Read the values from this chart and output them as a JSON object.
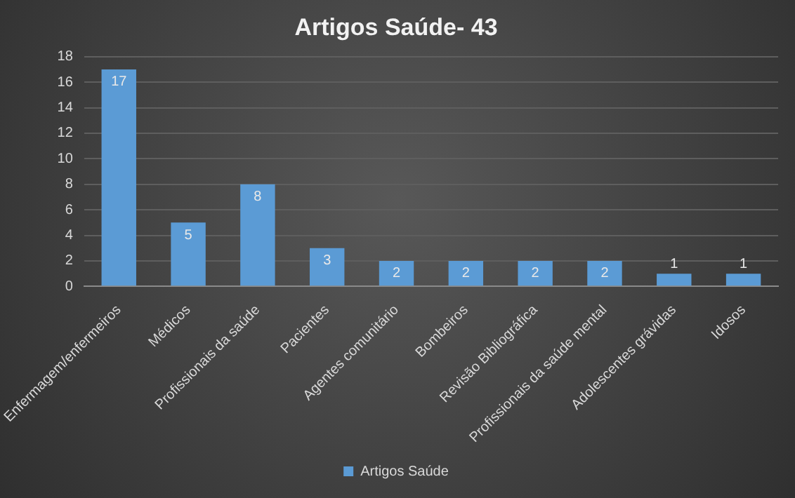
{
  "chart_data": {
    "type": "bar",
    "title": "Artigos Saúde- 43",
    "categories": [
      "Enfermagem/enfermeiros",
      "Médicos",
      "Profissionais da saúde",
      "Pacientes",
      "Agentes comunitário",
      "Bombeiros",
      "Revisão Bibliográfica",
      "Profissionais da saúde mental",
      "Adolescentes grávidas",
      "Idosos"
    ],
    "series": [
      {
        "name": "Artigos Saúde",
        "color": "#5b9bd5",
        "values": [
          17,
          5,
          8,
          3,
          2,
          2,
          2,
          2,
          1,
          1
        ]
      }
    ],
    "ylim": [
      0,
      18
    ],
    "yticks": [
      0,
      2,
      4,
      6,
      8,
      10,
      12,
      14,
      16,
      18
    ],
    "grid": "y",
    "legend": "bottom",
    "data_labels": true
  }
}
